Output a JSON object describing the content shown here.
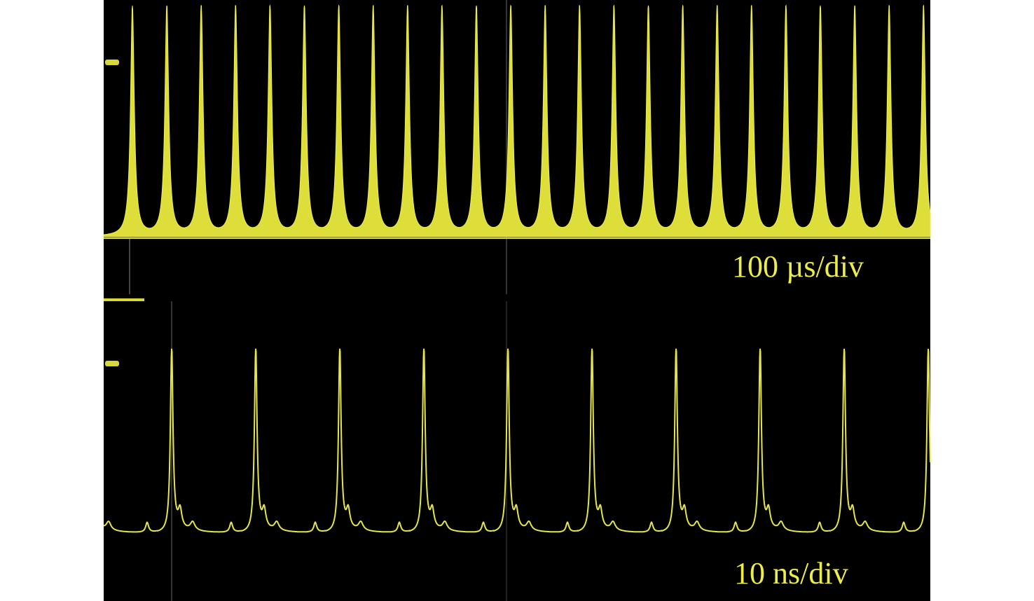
{
  "panels": [
    {
      "timebase": "100 µs/div"
    },
    {
      "timebase": "10 ns/div"
    }
  ]
}
